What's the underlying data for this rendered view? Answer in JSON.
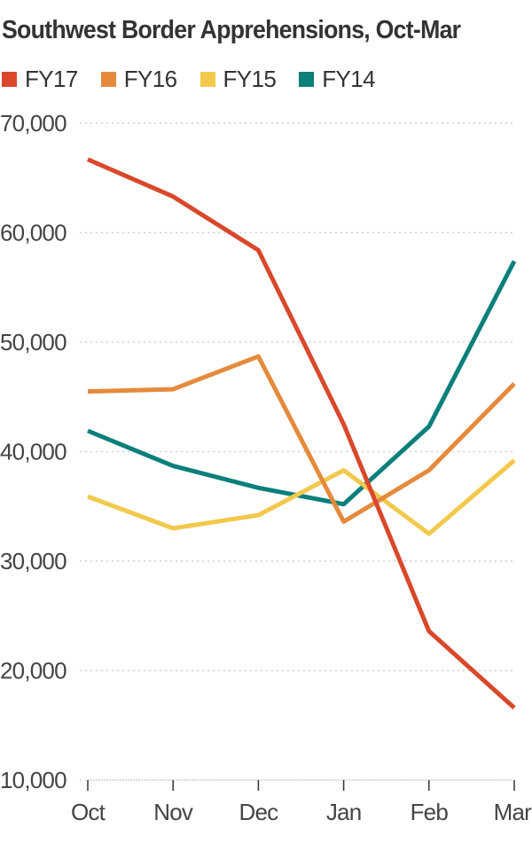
{
  "chart_data": {
    "type": "line",
    "title": "Southwest Border Apprehensions, Oct-Mar",
    "categories": [
      "Oct",
      "Nov",
      "Dec",
      "Jan",
      "Feb",
      "Mar"
    ],
    "ylim": [
      10000,
      70000
    ],
    "yticks": [
      10000,
      20000,
      30000,
      40000,
      50000,
      60000,
      70000
    ],
    "ytick_labels": [
      "10,000",
      "20,000",
      "30,000",
      "40,000",
      "50,000",
      "60,000",
      "70,000"
    ],
    "grid": true,
    "legend_position": "top-left",
    "series": [
      {
        "name": "FY17",
        "color": "#d9482b",
        "values": [
          66700,
          63300,
          58400,
          42500,
          23600,
          16600
        ]
      },
      {
        "name": "FY16",
        "color": "#e58a3c",
        "values": [
          45500,
          45700,
          48700,
          33600,
          38300,
          46200
        ]
      },
      {
        "name": "FY15",
        "color": "#f2c94c",
        "values": [
          35900,
          33000,
          34200,
          38300,
          32500,
          39200
        ]
      },
      {
        "name": "FY14",
        "color": "#0b7f7a",
        "values": [
          41900,
          38700,
          36700,
          35200,
          42300,
          57400
        ]
      }
    ]
  }
}
